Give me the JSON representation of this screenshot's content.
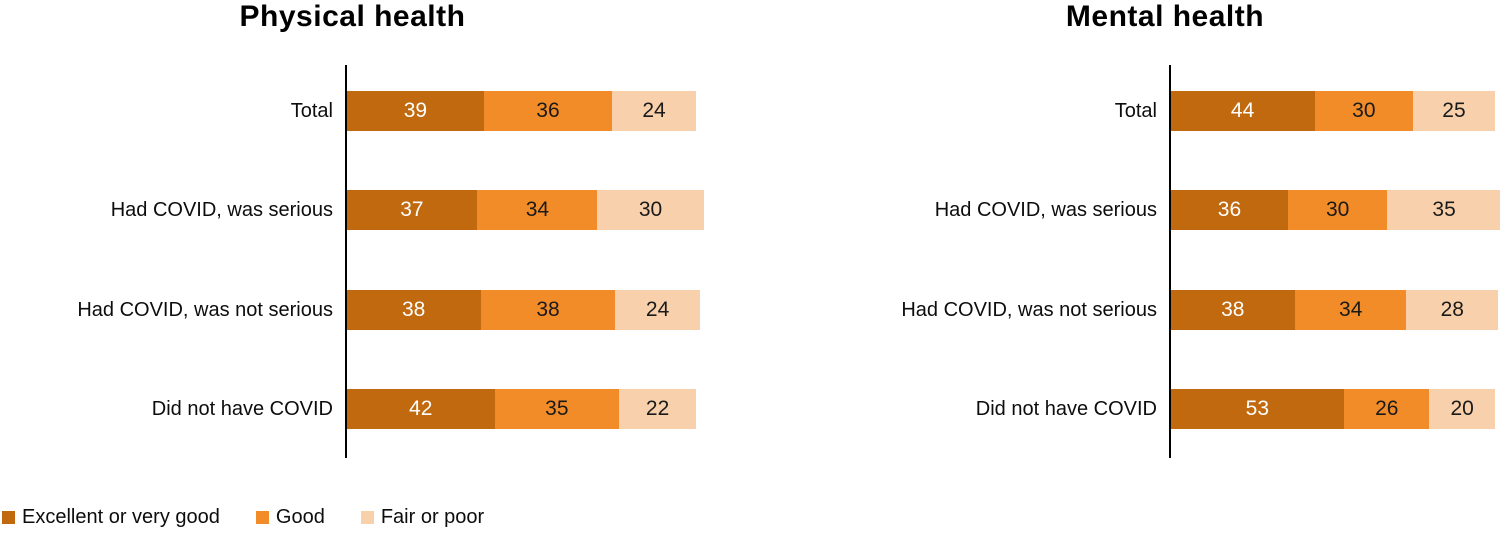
{
  "colors": {
    "series": [
      "#C1690F",
      "#F28C28",
      "#F8D0AB"
    ],
    "value_label_on_dark": "#FFFFFF",
    "value_label_on_light": "#1A1A1A",
    "axis": "#000000"
  },
  "legend": {
    "items": [
      "Excellent or very good",
      "Good",
      "Fair or poor"
    ]
  },
  "chart_data": [
    {
      "type": "bar",
      "orientation": "horizontal",
      "stacked": true,
      "title": "Physical health",
      "categories": [
        "Total",
        "Had COVID, was serious",
        "Had COVID, was not serious",
        "Did not have COVID"
      ],
      "series": [
        {
          "name": "Excellent or very good",
          "values": [
            39,
            37,
            38,
            42
          ]
        },
        {
          "name": "Good",
          "values": [
            36,
            34,
            38,
            35
          ]
        },
        {
          "name": "Fair or poor",
          "values": [
            24,
            30,
            24,
            22
          ]
        }
      ],
      "value_labels": true,
      "grid": false,
      "xlim": [
        0,
        101
      ],
      "legend_position": "bottom-left"
    },
    {
      "type": "bar",
      "orientation": "horizontal",
      "stacked": true,
      "title": "Mental health",
      "categories": [
        "Total",
        "Had COVID, was serious",
        "Had COVID, was not serious",
        "Did not have COVID"
      ],
      "series": [
        {
          "name": "Excellent or very good",
          "values": [
            44,
            36,
            38,
            53
          ]
        },
        {
          "name": "Good",
          "values": [
            30,
            30,
            34,
            26
          ]
        },
        {
          "name": "Fair or poor",
          "values": [
            25,
            35,
            28,
            20
          ]
        }
      ],
      "value_labels": true,
      "grid": false,
      "xlim": [
        0,
        101
      ],
      "legend_position": "bottom-left"
    }
  ]
}
